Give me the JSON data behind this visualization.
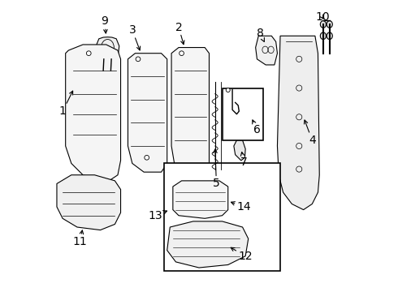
{
  "bg_color": "#ffffff",
  "line_color": "#000000",
  "fig_width": 4.9,
  "fig_height": 3.6,
  "dpi": 100,
  "font_size": 10
}
